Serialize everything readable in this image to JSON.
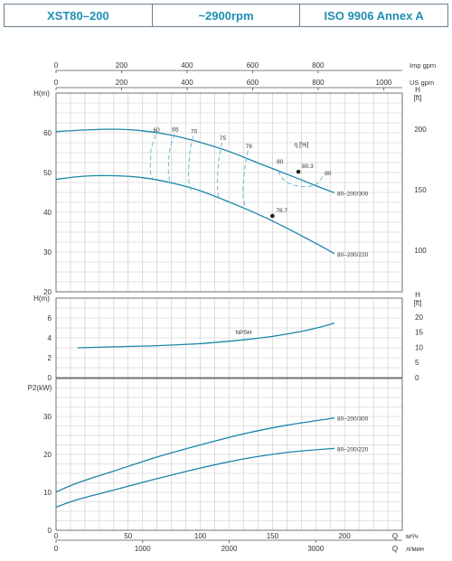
{
  "header": {
    "model": "XST80–200",
    "speed": "~2900rpm",
    "standard": "ISO 9906   Annex A"
  },
  "colors": {
    "header_text": "#1f8fb3",
    "curve": "#1a86aa",
    "efficiency_curve": "#6fb8d4",
    "grid": "#c8c8c8",
    "axis_text": "#333333"
  },
  "chart_data": [
    {
      "type": "line",
      "title": "",
      "xlabel": "Q",
      "ylabel": "H(m)",
      "ylabel_right": "H [ft]",
      "xlim": [
        0,
        240
      ],
      "ylim": [
        20,
        70
      ],
      "right_axis": {
        "ticks": [
          100,
          150,
          200
        ]
      },
      "y_ticks": [
        20,
        30,
        40,
        50,
        60
      ],
      "top_axes": [
        {
          "label": "Imp gpm",
          "ticks": [
            0,
            200,
            400,
            600,
            800
          ]
        },
        {
          "label": "US gpm",
          "ticks": [
            0,
            200,
            400,
            600,
            800,
            1000
          ]
        }
      ],
      "series": [
        {
          "name": "80–200/300",
          "x": [
            0,
            20,
            40,
            60,
            80,
            100,
            120,
            140,
            160,
            180,
            193
          ],
          "y": [
            60.3,
            60.7,
            60.9,
            60.5,
            59.4,
            57.6,
            55.3,
            52.4,
            49.6,
            46.7,
            44.9
          ]
        },
        {
          "name": "80–200/220",
          "x": [
            0,
            20,
            40,
            60,
            80,
            100,
            120,
            140,
            160,
            180,
            193
          ],
          "y": [
            48.3,
            49.1,
            49.2,
            48.7,
            47.4,
            45.4,
            42.6,
            39.5,
            36.0,
            32.2,
            29.6
          ]
        }
      ],
      "efficiency": {
        "label": "η [%]",
        "lines": [
          {
            "label": "60",
            "x": [
              69,
              66,
              65.5,
              65.5,
              67.5
            ],
            "y": [
              59.5,
              56,
              53,
              50,
              48
            ]
          },
          {
            "label": "65",
            "x": [
              82,
              79,
              78,
              78,
              79.5
            ],
            "y": [
              59.7,
              56,
              52.5,
              49.5,
              47
            ]
          },
          {
            "label": "70",
            "x": [
              95,
              93,
              92,
              92,
              93.5
            ],
            "y": [
              59.2,
              55.5,
              51.5,
              48,
              45.5
            ]
          },
          {
            "label": "75",
            "x": [
              115,
              113,
              112,
              112,
              113
            ],
            "y": [
              57.5,
              53.5,
              49.5,
              46,
              43
            ]
          },
          {
            "label": "78",
            "x": [
              133,
              131,
              130,
              129.5,
              131
            ],
            "y": [
              55.5,
              51.5,
              48,
              44.5,
              41.5
            ]
          }
        ],
        "loop_80": {
          "label": "80",
          "x": [
            154,
            157,
            162,
            170,
            179,
            183,
            186
          ],
          "y": [
            50.4,
            48.5,
            47.2,
            46.5,
            46.8,
            48,
            49.8
          ]
        },
        "loop_80_right_label": "80"
      },
      "points": [
        {
          "label": "80.3",
          "x": 168,
          "y": 50.2
        },
        {
          "label": "78.7",
          "x": 150,
          "y": 39.1
        }
      ]
    },
    {
      "type": "line",
      "title": "",
      "xlabel": "Q",
      "ylabel": "H(m)",
      "ylabel_right": "H [ft]",
      "xlim": [
        0,
        240
      ],
      "ylim": [
        0,
        8
      ],
      "y_ticks": [
        0,
        2,
        4,
        6
      ],
      "right_axis": {
        "ticks": [
          0,
          5,
          10,
          15,
          20
        ]
      },
      "series": [
        {
          "name": "NPSH",
          "x": [
            15,
            40,
            70,
            100,
            130,
            150,
            170,
            185,
            193
          ],
          "y": [
            3.0,
            3.1,
            3.22,
            3.42,
            3.8,
            4.15,
            4.65,
            5.15,
            5.5
          ]
        }
      ]
    },
    {
      "type": "line",
      "title": "",
      "xlabel": "Q",
      "ylabel": "P2(kW)",
      "xlim": [
        0,
        240
      ],
      "ylim": [
        0,
        40
      ],
      "y_ticks": [
        0,
        10,
        20,
        30
      ],
      "bottom_axes": [
        {
          "label": "м³/ч",
          "ticks": [
            0,
            50,
            100,
            150,
            200
          ]
        },
        {
          "label": "л/мин",
          "ticks": [
            0,
            1000,
            2000,
            3000
          ]
        }
      ],
      "series": [
        {
          "name": "80–200/300",
          "x": [
            0,
            15,
            40,
            70,
            100,
            130,
            160,
            193
          ],
          "y": [
            10.1,
            12.5,
            15.6,
            19.3,
            22.5,
            25.4,
            27.7,
            29.6
          ]
        },
        {
          "name": "80–200/220",
          "x": [
            0,
            15,
            40,
            70,
            100,
            130,
            160,
            193
          ],
          "y": [
            6.1,
            8.1,
            10.6,
            13.6,
            16.4,
            18.8,
            20.5,
            21.6
          ]
        }
      ]
    }
  ]
}
